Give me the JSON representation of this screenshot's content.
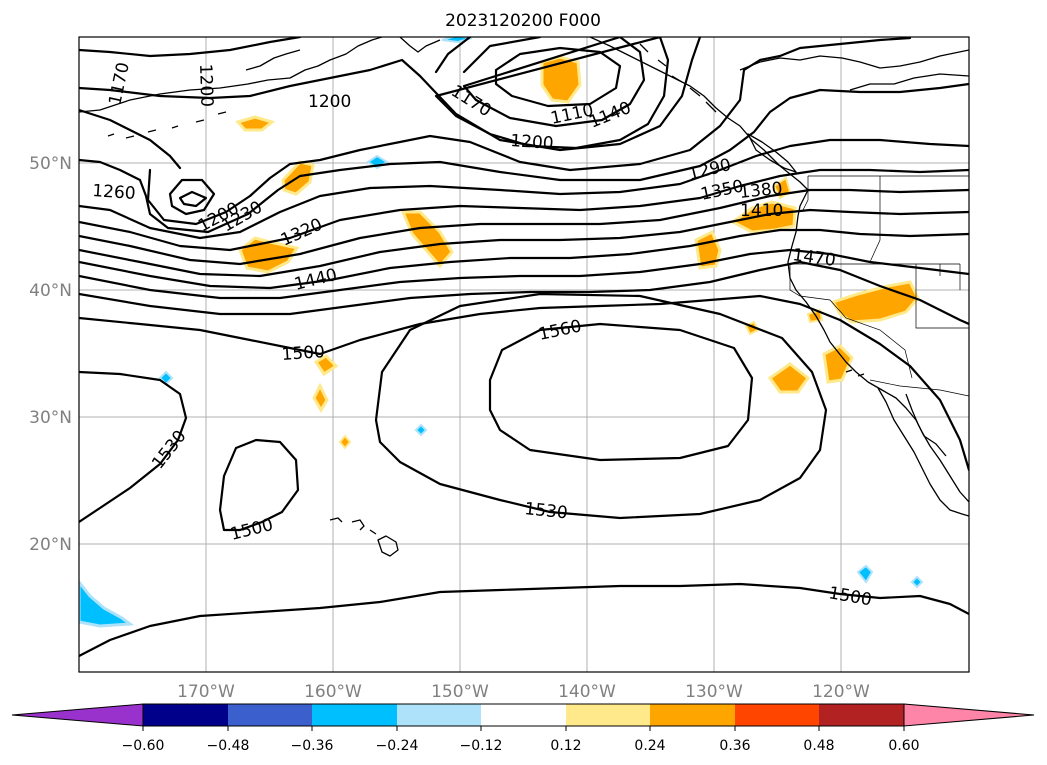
{
  "title": "2023120200 F000",
  "colors": {
    "neg5": "#9932cc",
    "neg4": "#00008b",
    "neg3": "#3b5fcd",
    "neg2": "#00bfff",
    "neg1": "#aee2fa",
    "zero": "#ffffff",
    "pos1": "#ffe98a",
    "pos2": "#ffa500",
    "pos3": "#ff4500",
    "pos4": "#b22222",
    "pos5": "#ff85a8"
  },
  "map": {
    "lon_range": [
      -180,
      -110
    ],
    "lat_range": [
      10,
      60
    ],
    "lon_labels": [
      "170°W",
      "160°W",
      "150°W",
      "140°W",
      "130°W",
      "120°W"
    ],
    "lat_labels": [
      "50°N",
      "40°N",
      "30°N",
      "20°N"
    ],
    "gridlines": true
  },
  "contour_labels": [
    "1170",
    "1200",
    "1200",
    "1170",
    "1110",
    "1140",
    "1200",
    "1290",
    "1350",
    "1380",
    "1410",
    "1260",
    "1200",
    "1230",
    "1320",
    "1440",
    "1470",
    "1500",
    "1560",
    "1530",
    "1530",
    "1500",
    "1500"
  ],
  "colorbar": {
    "ticks": [
      "−0.60",
      "−0.48",
      "−0.36",
      "−0.24",
      "−0.12",
      "0.12",
      "0.24",
      "0.36",
      "0.48",
      "0.60"
    ],
    "extend": "both"
  }
}
